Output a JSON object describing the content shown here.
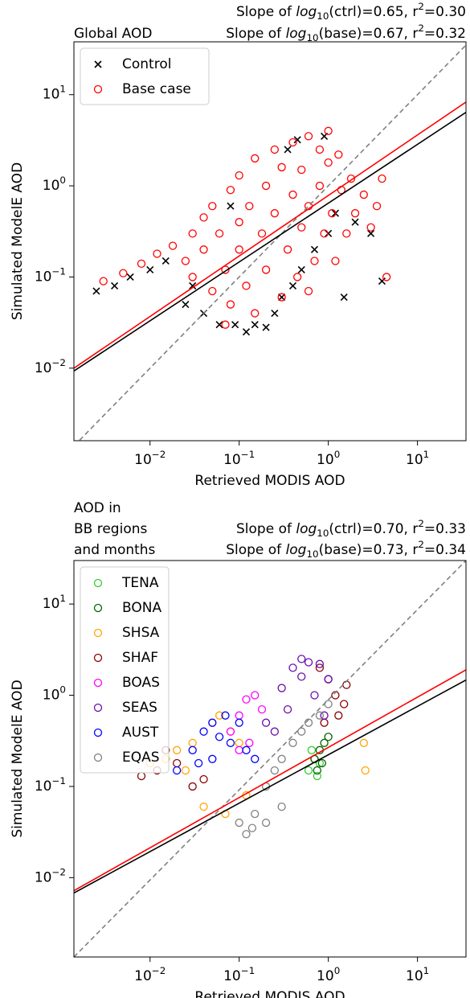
{
  "chart_data": [
    {
      "type": "scatter",
      "title": "Global AOD",
      "annotations": [
        "Slope of *log*_{10}(ctrl)=0.65, r^{2}=0.30",
        "Slope of *log*_{10}(base)=0.67, r^{2}=0.32"
      ],
      "xlabel": "Retrieved MODIS AOD",
      "ylabel": "Simulated ModelE AOD",
      "xscale": "log",
      "yscale": "log",
      "xlim": [
        0.0014,
        35
      ],
      "ylim": [
        0.0016,
        38
      ],
      "xticks": [
        {
          "value": 0.01,
          "label": "10^{−2}"
        },
        {
          "value": 0.1,
          "label": "10^{−1}"
        },
        {
          "value": 1,
          "label": "10^{0}"
        },
        {
          "value": 10,
          "label": "10^{1}"
        }
      ],
      "yticks": [
        {
          "value": 0.01,
          "label": "10^{−2}"
        },
        {
          "value": 0.1,
          "label": "10^{−1}"
        },
        {
          "value": 1,
          "label": "10^{0}"
        },
        {
          "value": 10,
          "label": "10^{1}"
        }
      ],
      "legend": "upper left",
      "series": [
        {
          "name": "Control",
          "color": "#000000",
          "marker": "x",
          "x": [
            0.0025,
            0.004,
            0.006,
            0.01,
            0.015,
            0.025,
            0.03,
            0.04,
            0.06,
            0.09,
            0.12,
            0.15,
            0.2,
            0.25,
            0.3,
            0.4,
            0.5,
            0.7,
            1.0,
            1.2,
            1.5,
            2.0,
            3.0,
            4.0,
            0.35,
            0.08,
            0.45,
            0.9
          ],
          "values": [
            0.07,
            0.08,
            0.1,
            0.12,
            0.15,
            0.05,
            0.08,
            0.04,
            0.03,
            0.03,
            0.025,
            0.03,
            0.028,
            0.04,
            0.06,
            0.08,
            0.12,
            0.2,
            0.3,
            0.5,
            0.06,
            0.4,
            0.3,
            0.09,
            2.5,
            0.6,
            3.2,
            3.5
          ]
        },
        {
          "name": "Base case",
          "color": "#ff0000",
          "marker": "o",
          "x": [
            0.003,
            0.005,
            0.008,
            0.012,
            0.018,
            0.025,
            0.03,
            0.03,
            0.04,
            0.04,
            0.05,
            0.05,
            0.06,
            0.07,
            0.08,
            0.08,
            0.1,
            0.1,
            0.1,
            0.12,
            0.13,
            0.15,
            0.15,
            0.18,
            0.2,
            0.2,
            0.25,
            0.25,
            0.3,
            0.3,
            0.35,
            0.4,
            0.4,
            0.45,
            0.5,
            0.5,
            0.6,
            0.6,
            0.7,
            0.8,
            0.8,
            0.9,
            1.0,
            1.0,
            1.1,
            1.3,
            1.4,
            1.6,
            1.8,
            2.0,
            2.5,
            3.0,
            3.5,
            4.0,
            4.5,
            0.07,
            0.6,
            1.2
          ],
          "values": [
            0.09,
            0.11,
            0.14,
            0.18,
            0.22,
            0.15,
            0.3,
            0.1,
            0.45,
            0.2,
            0.07,
            0.6,
            0.3,
            0.12,
            0.9,
            0.05,
            0.4,
            0.2,
            1.3,
            0.08,
            0.6,
            2.0,
            0.04,
            0.3,
            1.0,
            0.12,
            2.5,
            0.5,
            0.06,
            1.6,
            0.2,
            3.0,
            0.8,
            0.1,
            1.5,
            0.35,
            3.5,
            0.6,
            0.15,
            2.5,
            1.0,
            0.3,
            4.0,
            1.8,
            0.5,
            2.2,
            0.9,
            0.3,
            1.2,
            0.5,
            0.8,
            0.35,
            0.6,
            1.2,
            0.1,
            0.03,
            0.07,
            0.15
          ]
        }
      ],
      "lines": [
        {
          "color": "#808080",
          "style": "dashed",
          "x": [
            0.0014,
            35
          ],
          "values": [
            0.0014,
            35
          ]
        },
        {
          "color": "#ff0000",
          "style": "solid",
          "x": [
            0.0014,
            35
          ],
          "values": [
            0.01,
            8.3
          ]
        },
        {
          "color": "#000000",
          "style": "solid",
          "x": [
            0.0014,
            35
          ],
          "values": [
            0.0093,
            6.4
          ]
        }
      ]
    },
    {
      "type": "scatter",
      "title": [
        "AOD in",
        "BB regions",
        "and months"
      ],
      "annotations": [
        "Slope of *log*_{10}(ctrl)=0.70, r^{2}=0.33",
        "Slope of *log*_{10}(base)=0.73, r^{2}=0.34"
      ],
      "xlabel": "Retrieved MODIS AOD",
      "ylabel": "Simulated ModelE AOD",
      "xscale": "log",
      "yscale": "log",
      "xlim": [
        0.0014,
        35
      ],
      "ylim": [
        0.00135,
        30
      ],
      "xticks": [
        {
          "value": 0.01,
          "label": "10^{−2}"
        },
        {
          "value": 0.1,
          "label": "10^{−1}"
        },
        {
          "value": 1,
          "label": "10^{0}"
        },
        {
          "value": 10,
          "label": "10^{1}"
        }
      ],
      "yticks": [
        {
          "value": 0.01,
          "label": "10^{−2}"
        },
        {
          "value": 0.1,
          "label": "10^{−1}"
        },
        {
          "value": 1,
          "label": "10^{0}"
        },
        {
          "value": 10,
          "label": "10^{1}"
        }
      ],
      "legend": "upper left",
      "series": [
        {
          "name": "TENA",
          "color": "#32cd32",
          "marker": "o",
          "x": [
            0.6,
            0.7,
            0.75,
            0.65,
            0.8
          ],
          "values": [
            0.15,
            0.2,
            0.13,
            0.25,
            0.18
          ]
        },
        {
          "name": "BONA",
          "color": "#006400",
          "marker": "o",
          "x": [
            0.7,
            0.8,
            0.9,
            1.0,
            0.85,
            0.75
          ],
          "values": [
            0.2,
            0.25,
            0.3,
            0.35,
            0.18,
            0.15
          ]
        },
        {
          "name": "SHSA",
          "color": "#ffa500",
          "marker": "o",
          "x": [
            0.01,
            0.015,
            0.02,
            0.025,
            0.03,
            0.05,
            0.06,
            0.08,
            0.1,
            0.12,
            0.04,
            0.07,
            2.5,
            2.6
          ],
          "values": [
            0.18,
            0.2,
            0.25,
            0.15,
            0.3,
            0.5,
            0.6,
            0.4,
            0.3,
            0.08,
            0.06,
            0.05,
            0.3,
            0.15
          ]
        },
        {
          "name": "SHAF",
          "color": "#8b0000",
          "marker": "o",
          "x": [
            0.008,
            0.012,
            0.015,
            0.02,
            0.03,
            0.04,
            0.8,
            1.0,
            1.2,
            1.5,
            1.3,
            0.9,
            1.6
          ],
          "values": [
            0.13,
            0.15,
            0.25,
            0.18,
            0.1,
            0.12,
            2.0,
            1.5,
            1.0,
            0.8,
            0.6,
            0.5,
            1.3
          ]
        },
        {
          "name": "BOAS",
          "color": "#ff00ff",
          "marker": "o",
          "x": [
            0.08,
            0.1,
            0.12,
            0.15,
            0.18,
            0.13,
            0.1
          ],
          "values": [
            0.4,
            0.6,
            0.9,
            1.0,
            0.7,
            0.3,
            0.25
          ]
        },
        {
          "name": "SEAS",
          "color": "#6a0dad",
          "marker": "o",
          "x": [
            0.2,
            0.3,
            0.4,
            0.5,
            0.6,
            0.8,
            1.0,
            0.35,
            0.7,
            0.25,
            0.5,
            0.9
          ],
          "values": [
            0.5,
            1.2,
            2.0,
            2.5,
            2.3,
            2.2,
            1.5,
            0.7,
            1.0,
            0.4,
            1.6,
            0.6
          ]
        },
        {
          "name": "AUST",
          "color": "#0000ff",
          "marker": "o",
          "x": [
            0.02,
            0.03,
            0.04,
            0.05,
            0.06,
            0.08,
            0.1,
            0.12,
            0.15,
            0.035,
            0.07,
            0.05
          ],
          "values": [
            0.15,
            0.25,
            0.4,
            0.2,
            0.35,
            0.3,
            0.5,
            0.25,
            0.2,
            0.18,
            0.6,
            0.5
          ]
        },
        {
          "name": "EQAS",
          "color": "#808080",
          "marker": "o",
          "x": [
            0.1,
            0.12,
            0.15,
            0.2,
            0.25,
            0.3,
            0.4,
            0.5,
            0.6,
            0.8,
            1.0,
            0.3,
            0.2,
            0.14
          ],
          "values": [
            0.04,
            0.03,
            0.05,
            0.1,
            0.15,
            0.2,
            0.3,
            0.4,
            0.5,
            0.6,
            0.8,
            0.06,
            0.04,
            0.035
          ]
        }
      ],
      "lines": [
        {
          "color": "#808080",
          "style": "dashed",
          "x": [
            0.0014,
            35
          ],
          "values": [
            0.00135,
            30
          ]
        },
        {
          "color": "#ff0000",
          "style": "solid",
          "x": [
            0.0014,
            35
          ],
          "values": [
            0.0072,
            1.9
          ]
        },
        {
          "color": "#000000",
          "style": "solid",
          "x": [
            0.0014,
            35
          ],
          "values": [
            0.0068,
            1.47
          ]
        }
      ]
    }
  ]
}
